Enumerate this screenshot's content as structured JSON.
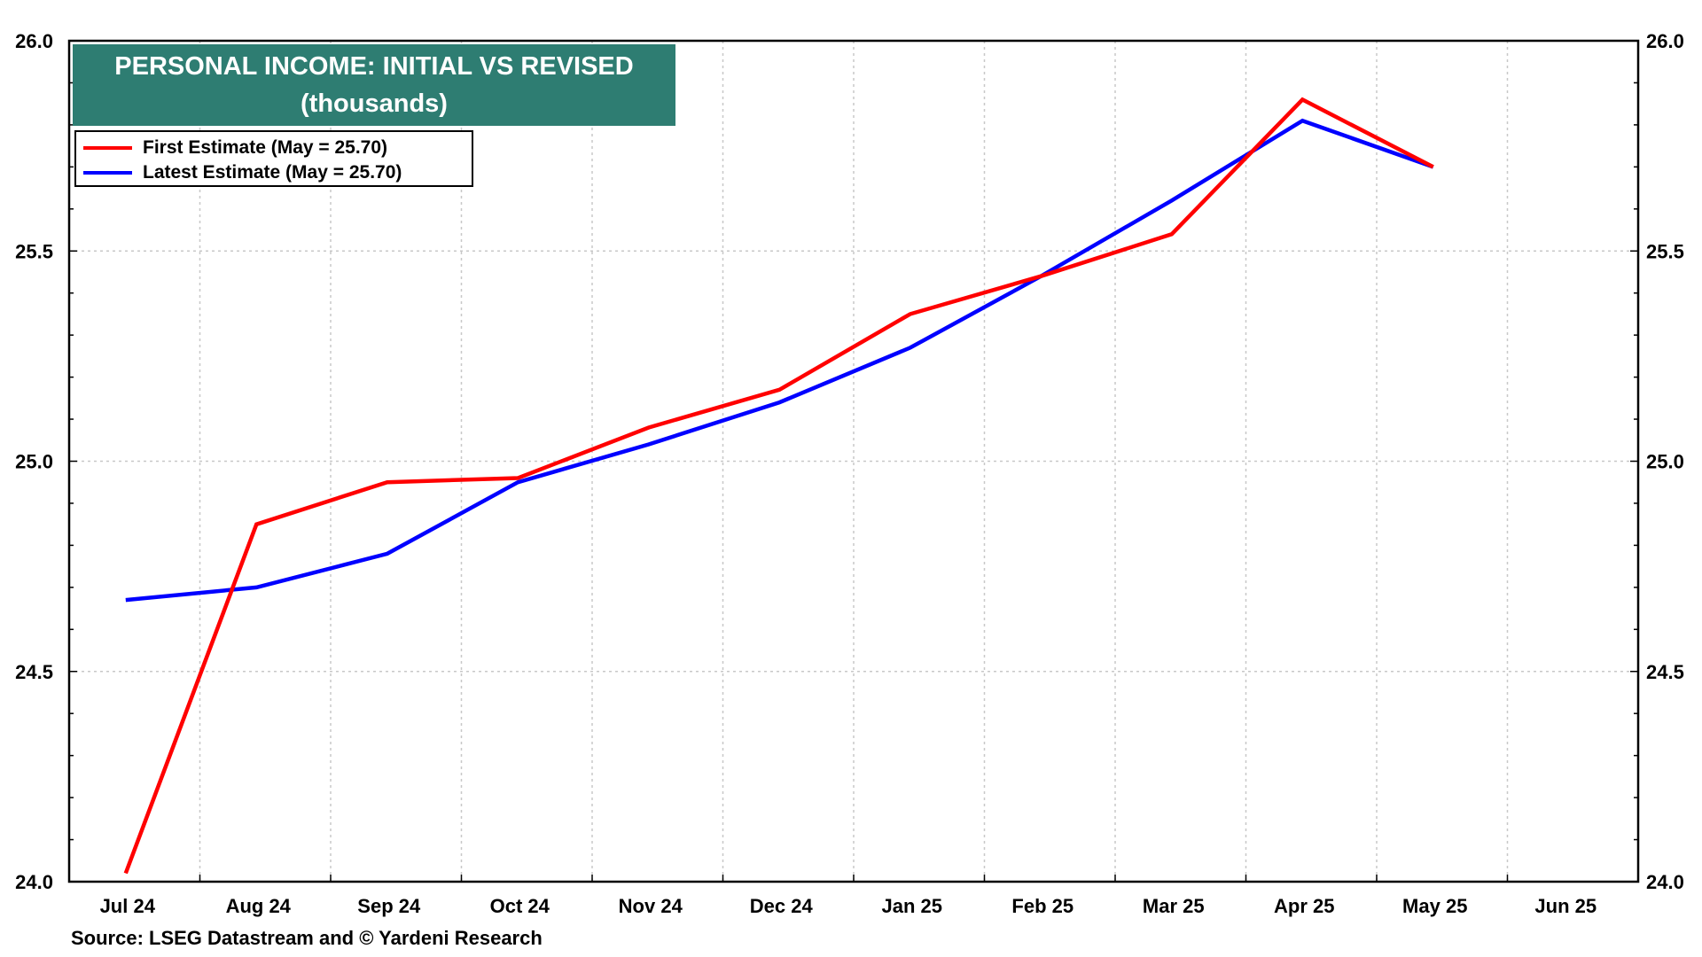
{
  "chart_data": {
    "type": "line",
    "title": "PERSONAL INCOME: INITIAL VS REVISED",
    "subtitle": "(thousands)",
    "categories": [
      "Jul 24",
      "Aug 24",
      "Sep 24",
      "Oct 24",
      "Nov 24",
      "Dec 24",
      "Jan 25",
      "Feb 25",
      "Mar 25",
      "Apr 25",
      "May 25",
      "Jun 25"
    ],
    "ylim": [
      24.0,
      26.0
    ],
    "y_ticks": [
      "24.0",
      "24.5",
      "25.0",
      "25.5",
      "26.0"
    ],
    "grid": true,
    "legend_placement": "top-left",
    "series": [
      {
        "name": "First Estimate (May = 25.70)",
        "color": "#ff0000",
        "values": [
          24.02,
          24.85,
          24.95,
          24.96,
          25.08,
          25.17,
          25.35,
          25.44,
          25.54,
          25.86,
          25.7,
          null
        ]
      },
      {
        "name": "Latest Estimate (May = 25.70)",
        "color": "#0000ff",
        "values": [
          24.67,
          24.7,
          24.78,
          24.95,
          25.04,
          25.14,
          25.27,
          25.44,
          25.62,
          25.81,
          25.7,
          null
        ]
      }
    ]
  },
  "title_box_color": "#2e7d72",
  "source": "Source: LSEG Datastream and © Yardeni Research"
}
